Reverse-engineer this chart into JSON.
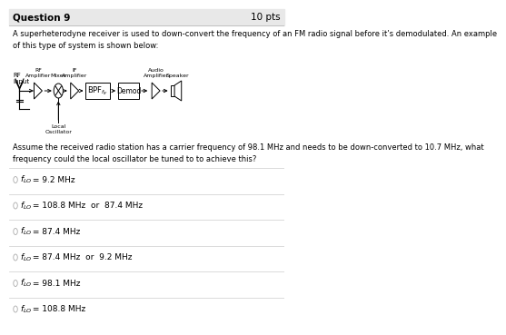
{
  "title": "Question 9",
  "pts": "10 pts",
  "body_text": "A superheterodyne receiver is used to down-convert the frequency of an FM radio signal before it’s demodulated. An example\nof this type of system is shown below:",
  "question_text": "Assume the received radio station has a carrier frequency of 98.1 MHz and needs to be down-converted to 10.7 MHz, what\nfrequency could the local oscillator be tuned to to achieve this?",
  "options_val": [
    " = 9.2 MHz",
    " = 108.8 MHz  or  87.4 MHz",
    " = 87.4 MHz",
    " = 87.4 MHz  or  9.2 MHz",
    " = 98.1 MHz",
    " = 108.8 MHz"
  ],
  "bg_color": "#ffffff",
  "header_bg": "#e8e8e8",
  "header_border": "#bbbbbb",
  "divider_color": "#cccccc",
  "text_color": "#000000",
  "radio_color": "#aaaaaa"
}
